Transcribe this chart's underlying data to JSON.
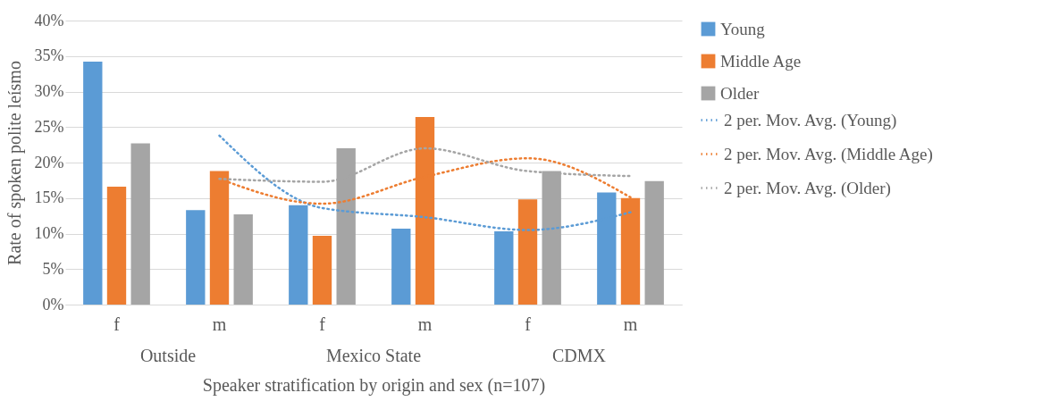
{
  "chart_data": {
    "type": "bar",
    "xlabel": "Speaker stratification by origin and sex (n=107)",
    "ylabel": "Rate of spoken polite leísmo",
    "categories": [
      "f",
      "m",
      "f",
      "m",
      "f",
      "m"
    ],
    "series": [
      {
        "name": "Young",
        "color": "#5b9bd5",
        "values": [
          34.2,
          13.3,
          14.0,
          10.7,
          10.3,
          15.8
        ]
      },
      {
        "name": "Middle Age",
        "color": "#ed7d31",
        "values": [
          16.6,
          18.8,
          9.7,
          26.4,
          14.8,
          15.0
        ]
      },
      {
        "name": "Older",
        "color": "#a5a5a5",
        "values": [
          22.7,
          12.7,
          22.0,
          null,
          18.8,
          17.4
        ]
      },
      {
        "name": "2 per. Mov. Avg. (Young)",
        "type": "line",
        "line_style": "dotted",
        "color": "#5b9bd5",
        "values": [
          null,
          23.8,
          13.6,
          12.3,
          10.5,
          13.0
        ]
      },
      {
        "name": "2 per. Mov. Avg. (Middle Age)",
        "type": "line",
        "line_style": "dotted",
        "color": "#ed7d31",
        "values": [
          null,
          17.7,
          14.2,
          18.0,
          20.6,
          15.1
        ]
      },
      {
        "name": "2 per. Mov. Avg. (Older)",
        "type": "line",
        "line_style": "dotted",
        "color": "#a5a5a5",
        "values": [
          null,
          17.7,
          17.3,
          22.0,
          18.8,
          18.1
        ]
      }
    ],
    "annotations": [
      "Outside",
      "Mexico State",
      "CDMX"
    ],
    "ylim": [
      0,
      40
    ],
    "yticks": [
      {
        "value": 0,
        "label": "0%"
      },
      {
        "value": 5,
        "label": "5%"
      },
      {
        "value": 10,
        "label": "10%"
      },
      {
        "value": 15,
        "label": "15%"
      },
      {
        "value": 20,
        "label": "20%"
      },
      {
        "value": 25,
        "label": "25%"
      },
      {
        "value": 30,
        "label": "30%"
      },
      {
        "value": 35,
        "label": "35%"
      },
      {
        "value": 40,
        "label": "40%"
      }
    ],
    "grid": "y",
    "legend": "right"
  }
}
